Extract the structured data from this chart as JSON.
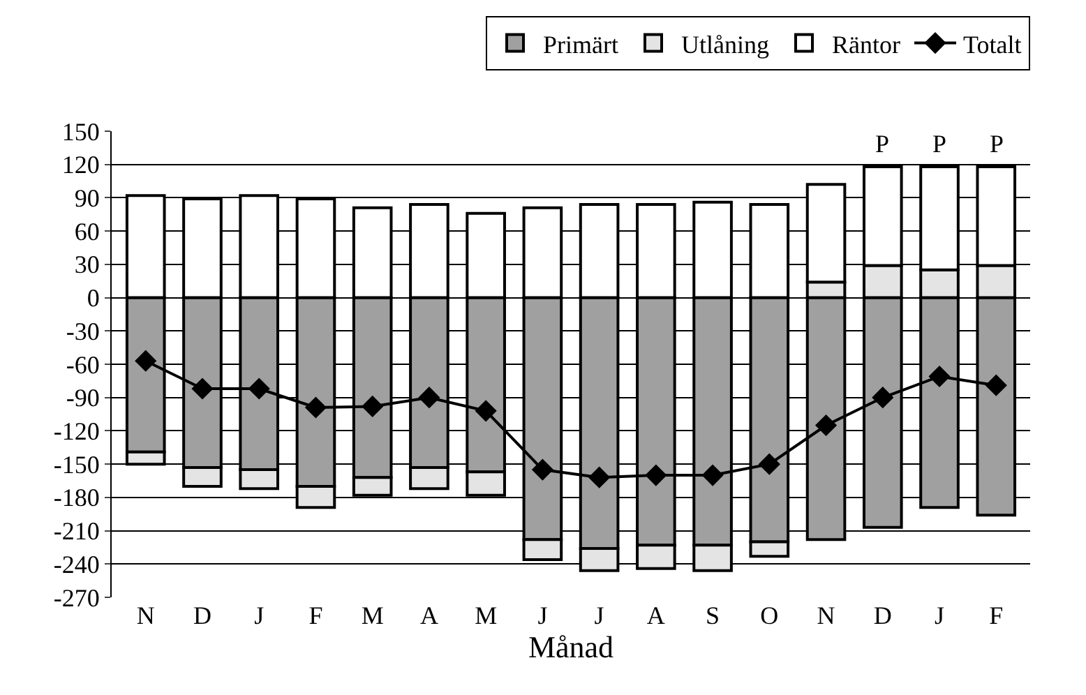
{
  "chart_data": {
    "type": "bar",
    "stacked": true,
    "xlabel": "Månad",
    "categories": [
      "N",
      "D",
      "J",
      "F",
      "M",
      "A",
      "M",
      "J",
      "J",
      "A",
      "S",
      "O",
      "N",
      "D",
      "J",
      "F"
    ],
    "series": [
      {
        "name": "Primärt",
        "color": "#a0a0a0",
        "values": [
          -139,
          -153,
          -155,
          -170,
          -162,
          -153,
          -157,
          -218,
          -226,
          -223,
          -223,
          -220,
          -218,
          -207,
          -189,
          -196
        ]
      },
      {
        "name": "Utlåning",
        "color": "#e4e4e4",
        "values": [
          -11,
          -17,
          -17,
          -19,
          -16,
          -19,
          -21,
          -18,
          -20,
          -21,
          -23,
          -13,
          14,
          29,
          25,
          29
        ]
      },
      {
        "name": "Räntor",
        "color": "#ffffff",
        "values": [
          92,
          89,
          92,
          89,
          81,
          84,
          76,
          81,
          84,
          84,
          86,
          84,
          88,
          89,
          93,
          89
        ],
        "value_labels": [
          null,
          null,
          null,
          null,
          null,
          null,
          null,
          null,
          null,
          null,
          null,
          null,
          null,
          "P",
          "P",
          "P"
        ]
      },
      {
        "name": "Totalt",
        "type": "line",
        "color": "#000000",
        "marker": "diamond",
        "line_style": "solid",
        "values": [
          -57,
          -82,
          -82,
          -99,
          -98,
          -90,
          -102,
          -155,
          -162,
          -160,
          -160,
          -150,
          -115,
          -90,
          -71,
          -79
        ]
      }
    ],
    "ylim": [
      -270,
      150
    ],
    "yticks": [
      150,
      120,
      90,
      60,
      30,
      0,
      -30,
      -60,
      -90,
      -120,
      -150,
      -180,
      -210,
      -240,
      -270
    ],
    "grid": "y",
    "legend": "top right"
  }
}
